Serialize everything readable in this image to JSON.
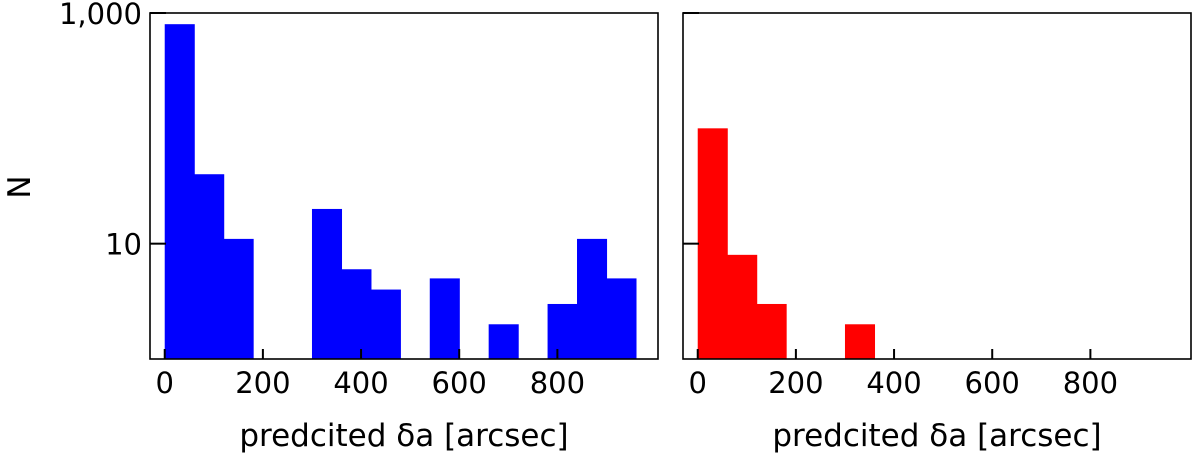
{
  "chart_data": [
    {
      "type": "bar",
      "panel": "left",
      "color": "#0000ff",
      "bin_width": 60,
      "bins": [
        0,
        60,
        120,
        300,
        360,
        420,
        540,
        600,
        660,
        780,
        840,
        900
      ],
      "values": [
        800,
        40,
        11,
        20,
        6,
        4,
        5,
        1,
        2,
        3,
        11,
        5
      ],
      "xlabel": "predcited δa [arcsec]",
      "ylabel": "N",
      "xlim": [
        -30,
        1005
      ],
      "ylim": [
        1,
        1000
      ],
      "yscale": "log",
      "xticks": [
        0,
        200,
        400,
        600,
        800
      ],
      "xtick_labels": [
        "0",
        "200",
        "400",
        "600",
        "800"
      ],
      "yticks": [
        10,
        1000
      ],
      "ytick_labels": [
        "10",
        "1,000"
      ]
    },
    {
      "type": "bar",
      "panel": "right",
      "color": "#ff0000",
      "bin_width": 60,
      "bins": [
        0,
        60,
        120,
        300,
        540
      ],
      "values": [
        100,
        8,
        3,
        2,
        1
      ],
      "xlabel": "predcited δa [arcsec]",
      "ylabel": "",
      "xlim": [
        -30,
        1005
      ],
      "ylim": [
        1,
        1000
      ],
      "yscale": "log",
      "xticks": [
        0,
        200,
        400,
        600,
        800
      ],
      "xtick_labels": [
        "0",
        "200",
        "400",
        "600",
        "800"
      ],
      "yticks": [
        10,
        1000
      ],
      "ytick_labels": [
        "",
        ""
      ]
    }
  ]
}
